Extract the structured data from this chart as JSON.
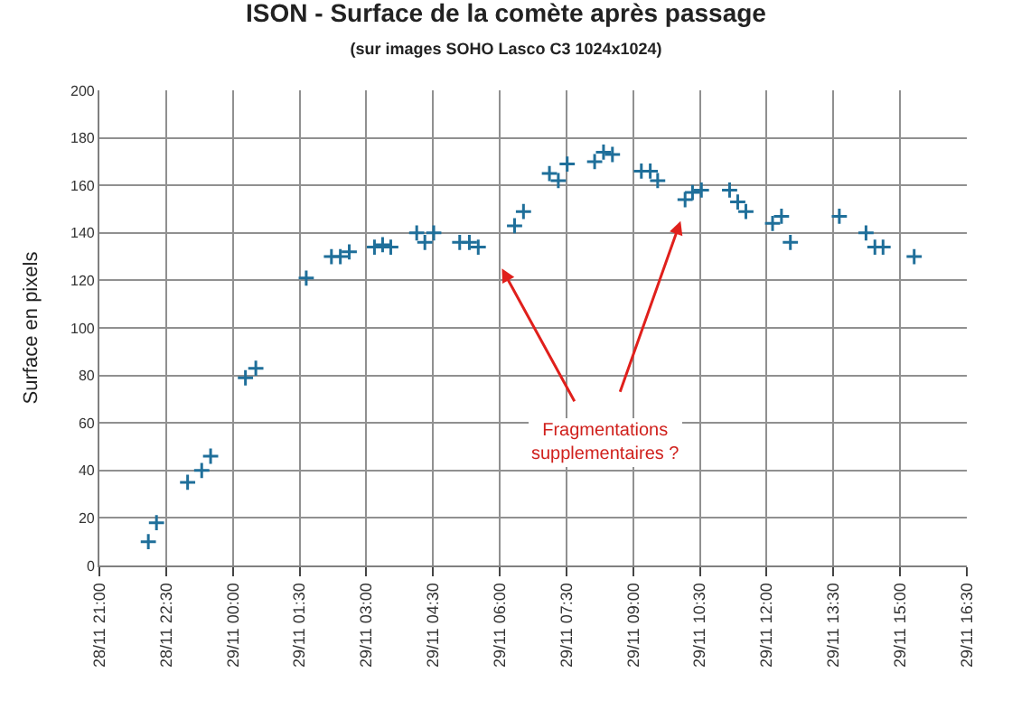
{
  "chart_data": {
    "type": "scatter",
    "title": "ISON - Surface de la comète après passage",
    "subtitle": "(sur images SOHO Lasco C3 1024x1024)",
    "ylabel": "Surface en pixels",
    "x": [
      "--11-28T22:06",
      "--11-28T22:17",
      "--11-28T22:59",
      "--11-28T23:18",
      "--11-28T23:30",
      "--11-29T00:17",
      "--11-29T00:31",
      "--11-29T01:39",
      "--11-29T02:13",
      "--11-29T02:25",
      "--11-29T02:37",
      "--11-29T03:11",
      "--11-29T03:22",
      "--11-29T03:33",
      "--11-29T04:08",
      "--11-29T04:19",
      "--11-29T04:31",
      "--11-29T05:06",
      "--11-29T05:19",
      "--11-29T05:31",
      "--11-29T06:20",
      "--11-29T06:32",
      "--11-29T07:07",
      "--11-29T07:19",
      "--11-29T07:31",
      "--11-29T08:08",
      "--11-29T08:20",
      "--11-29T08:32",
      "--11-29T09:11",
      "--11-29T09:23",
      "--11-29T09:33",
      "--11-29T10:10",
      "--11-29T10:20",
      "--11-29T10:32",
      "--11-29T11:10",
      "--11-29T11:21",
      "--11-29T11:32",
      "--11-29T12:08",
      "--11-29T12:20",
      "--11-29T12:32",
      "--11-29T13:38",
      "--11-29T14:14",
      "--11-29T14:26",
      "--11-29T14:37",
      "--11-29T15:19"
    ],
    "series": [
      {
        "color": "#1f6f9a",
        "values": [
          10,
          18,
          35,
          40,
          46,
          79,
          83,
          121,
          130,
          130,
          132,
          134,
          135,
          134,
          140,
          136,
          140,
          136,
          136,
          134,
          143,
          149,
          165,
          162,
          169,
          170,
          174,
          173,
          166,
          166,
          162,
          154,
          157,
          158,
          158,
          153,
          149,
          144,
          147,
          136,
          147,
          140,
          134,
          134,
          130
        ]
      }
    ],
    "xlim": [
      "--11-28T21:00",
      "--11-29T16:30"
    ],
    "xticks": [
      {
        "value": "--11-28T21:00",
        "label": "28/11 21:00"
      },
      {
        "value": "--11-28T22:30",
        "label": "28/11 22:30"
      },
      {
        "value": "--11-29T00:00",
        "label": "29/11 00:00"
      },
      {
        "value": "--11-29T01:30",
        "label": "29/11 01:30"
      },
      {
        "value": "--11-29T03:00",
        "label": "29/11 03:00"
      },
      {
        "value": "--11-29T04:30",
        "label": "29/11 04:30"
      },
      {
        "value": "--11-29T06:00",
        "label": "29/11 06:00"
      },
      {
        "value": "--11-29T07:30",
        "label": "29/11 07:30"
      },
      {
        "value": "--11-29T09:00",
        "label": "29/11 09:00"
      },
      {
        "value": "--11-29T10:30",
        "label": "29/11 10:30"
      },
      {
        "value": "--11-29T12:00",
        "label": "29/11 12:00"
      },
      {
        "value": "--11-29T13:30",
        "label": "29/11 13:30"
      },
      {
        "value": "--11-29T15:00",
        "label": "29/11 15:00"
      },
      {
        "value": "--11-29T16:30",
        "label": "29/11 16:30"
      }
    ],
    "ylim": [
      0,
      200
    ],
    "yticks": [
      0,
      20,
      40,
      60,
      80,
      100,
      120,
      140,
      160,
      180,
      200
    ],
    "grid": true,
    "marker": "cross",
    "annotations": [
      "Fragmentations supplementaires ?"
    ]
  }
}
